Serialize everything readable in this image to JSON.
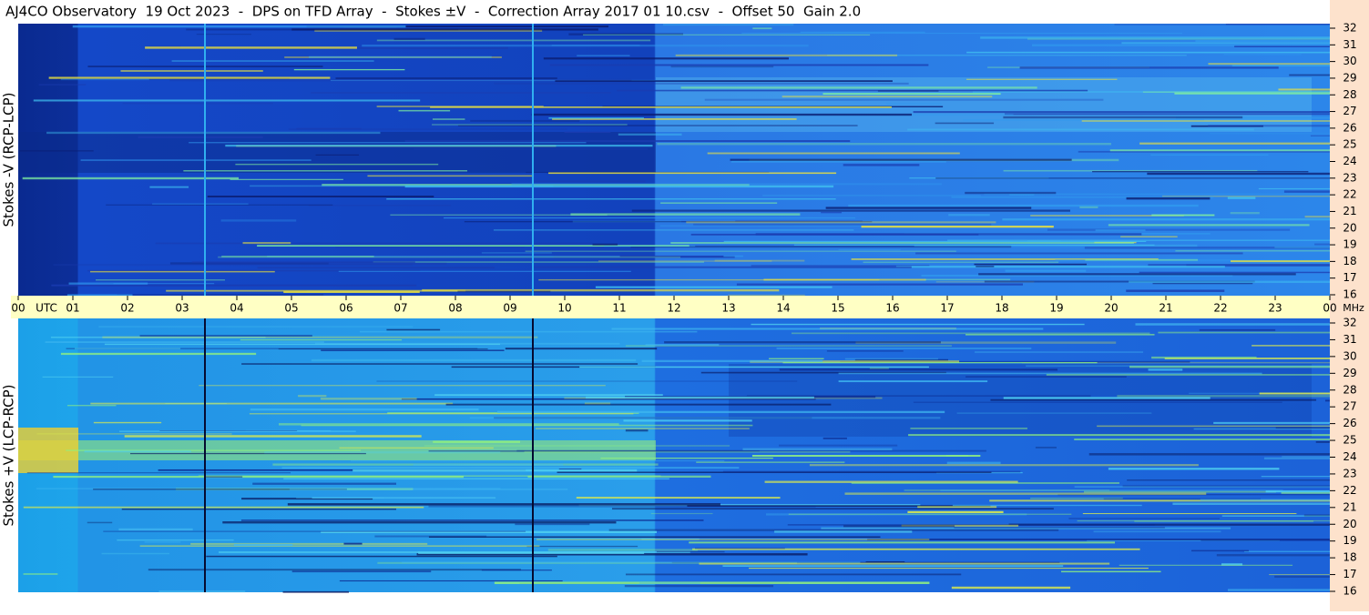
{
  "title": "AJ4CO Observatory  19 Oct 2023  -  DPS on TFD Array  -  Stokes ±V  -  Correction Array 2017 01 10.csv  -  Offset 50  Gain 2.0",
  "x_unit": "UTC",
  "y_unit": "MHz",
  "xlim": [
    0,
    24
  ],
  "xticks": [
    {
      "value": 0,
      "label": "00"
    },
    {
      "value": 1,
      "label": "01"
    },
    {
      "value": 2,
      "label": "02"
    },
    {
      "value": 3,
      "label": "03"
    },
    {
      "value": 4,
      "label": "04"
    },
    {
      "value": 5,
      "label": "05"
    },
    {
      "value": 6,
      "label": "06"
    },
    {
      "value": 7,
      "label": "07"
    },
    {
      "value": 8,
      "label": "08"
    },
    {
      "value": 9,
      "label": "09"
    },
    {
      "value": 10,
      "label": "10"
    },
    {
      "value": 11,
      "label": "11"
    },
    {
      "value": 12,
      "label": "12"
    },
    {
      "value": 13,
      "label": "13"
    },
    {
      "value": 14,
      "label": "14"
    },
    {
      "value": 15,
      "label": "15"
    },
    {
      "value": 16,
      "label": "16"
    },
    {
      "value": 17,
      "label": "17"
    },
    {
      "value": 18,
      "label": "18"
    },
    {
      "value": 19,
      "label": "19"
    },
    {
      "value": 20,
      "label": "20"
    },
    {
      "value": 21,
      "label": "21"
    },
    {
      "value": 22,
      "label": "22"
    },
    {
      "value": 23,
      "label": "23"
    },
    {
      "value": 24,
      "label": "00"
    }
  ],
  "chart_data": [
    {
      "type": "spectrogram",
      "ylabel": "Stokes -V (RCP-LCP)",
      "ylim": [
        16,
        32
      ],
      "yticks": [
        16,
        17,
        18,
        19,
        20,
        21,
        22,
        23,
        24,
        25,
        26,
        27,
        28,
        29,
        30,
        31,
        32
      ]
    },
    {
      "type": "spectrogram",
      "ylabel": "Stokes +V (LCP-RCP)",
      "ylim": [
        16,
        32
      ],
      "yticks": [
        16,
        17,
        18,
        19,
        20,
        21,
        22,
        23,
        24,
        25,
        26,
        27,
        28,
        29,
        30,
        31,
        32
      ]
    }
  ]
}
